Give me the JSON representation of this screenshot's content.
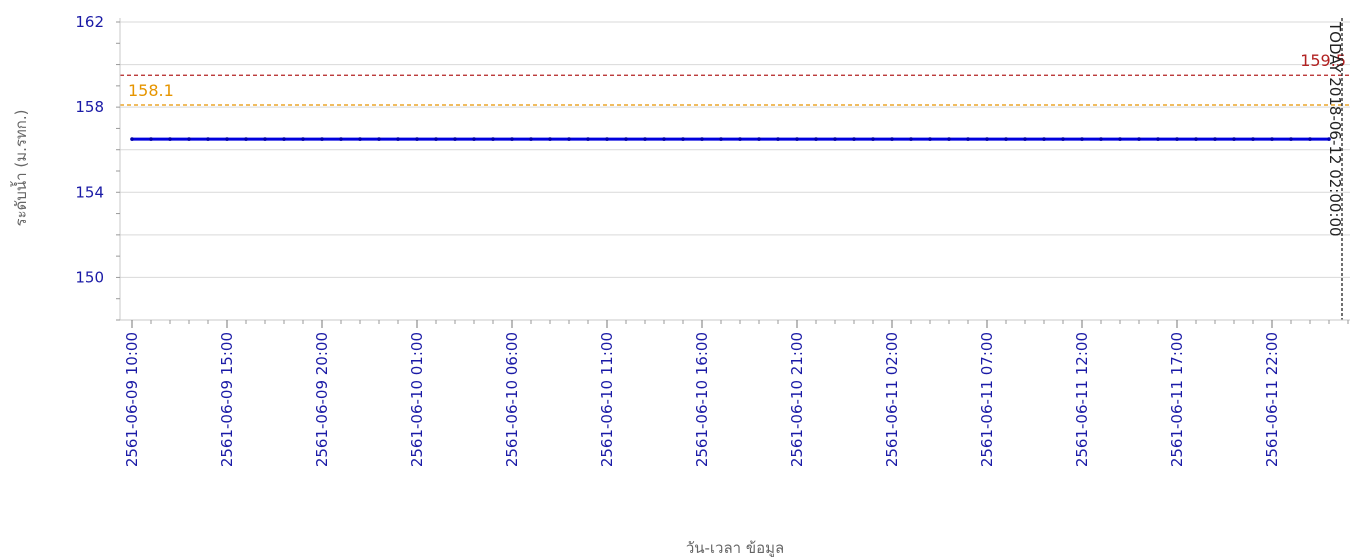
{
  "chart_data": {
    "type": "line",
    "ylabel": "ระดับน้ำ (ม.รทก.)",
    "xlabel": "วัน-เวลา ข้อมูล",
    "ylim": [
      148,
      162
    ],
    "yticks": [
      150,
      154,
      158,
      162
    ],
    "x_start": "2561-06-09 10:00",
    "x_end": "2561-06-12 02:00",
    "x_tick_labels": [
      "2561-06-09 10:00",
      "2561-06-09 15:00",
      "2561-06-09 20:00",
      "2561-06-10 01:00",
      "2561-06-10 06:00",
      "2561-06-10 11:00",
      "2561-06-10 16:00",
      "2561-06-10 21:00",
      "2561-06-11 02:00",
      "2561-06-11 07:00",
      "2561-06-11 12:00",
      "2561-06-11 17:00",
      "2561-06-11 22:00"
    ],
    "series": [
      {
        "color": "#0000dd",
        "x_step_hours": 1,
        "points_count": 64,
        "constant_value": 156.5
      }
    ],
    "reference_lines": [
      {
        "label": "159.5",
        "value": 159.5,
        "color": "#b22222"
      },
      {
        "label": "158.1",
        "value": 158.1,
        "color": "#e69500"
      }
    ],
    "current_time_marker": {
      "label": "TODAY 2018-06-12 02:00:00",
      "x": "2561-06-12 02:00"
    },
    "grid": true
  }
}
